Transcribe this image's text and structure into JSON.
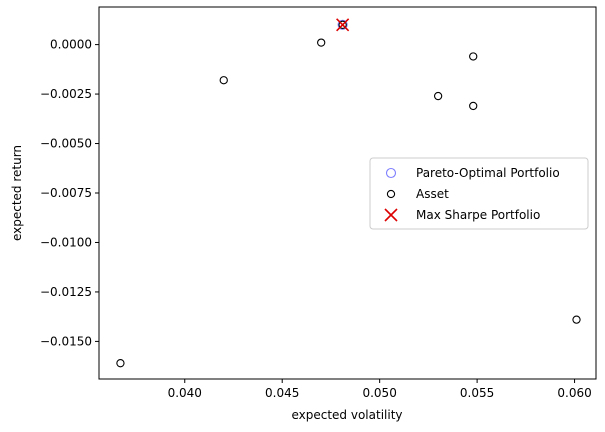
{
  "chart_data": {
    "type": "scatter",
    "xlabel": "expected volatility",
    "ylabel": "expected return",
    "xlim": [
      0.0356,
      0.0611
    ],
    "ylim": [
      -0.0169,
      0.0019
    ],
    "x_ticks": [
      0.04,
      0.045,
      0.05,
      0.055,
      0.06
    ],
    "x_tick_labels": [
      "0.040",
      "0.045",
      "0.050",
      "0.055",
      "0.060"
    ],
    "y_ticks": [
      0.0,
      -0.0025,
      -0.005,
      -0.0075,
      -0.01,
      -0.0125,
      -0.015
    ],
    "y_tick_labels": [
      "0.0000",
      "−0.0025",
      "−0.0050",
      "−0.0075",
      "−0.0100",
      "−0.0125",
      "−0.0150"
    ],
    "grid": false,
    "legend_position": "center-right",
    "series": [
      {
        "name": "Pareto-Optimal Portfolio",
        "marker": "open-circle",
        "color": "#7f7fff",
        "points": [
          {
            "x": 0.0481,
            "y": 0.001
          }
        ]
      },
      {
        "name": "Asset",
        "marker": "open-circle",
        "color": "#000000",
        "points": [
          {
            "x": 0.0367,
            "y": -0.0161
          },
          {
            "x": 0.042,
            "y": -0.0018
          },
          {
            "x": 0.047,
            "y": 0.0001
          },
          {
            "x": 0.0481,
            "y": 0.001
          },
          {
            "x": 0.053,
            "y": -0.0026
          },
          {
            "x": 0.0548,
            "y": -0.0006
          },
          {
            "x": 0.0548,
            "y": -0.0031
          },
          {
            "x": 0.0601,
            "y": -0.0139
          }
        ]
      },
      {
        "name": "Max Sharpe Portfolio",
        "marker": "x",
        "color": "#dd0000",
        "points": [
          {
            "x": 0.0481,
            "y": 0.001
          }
        ]
      }
    ]
  }
}
